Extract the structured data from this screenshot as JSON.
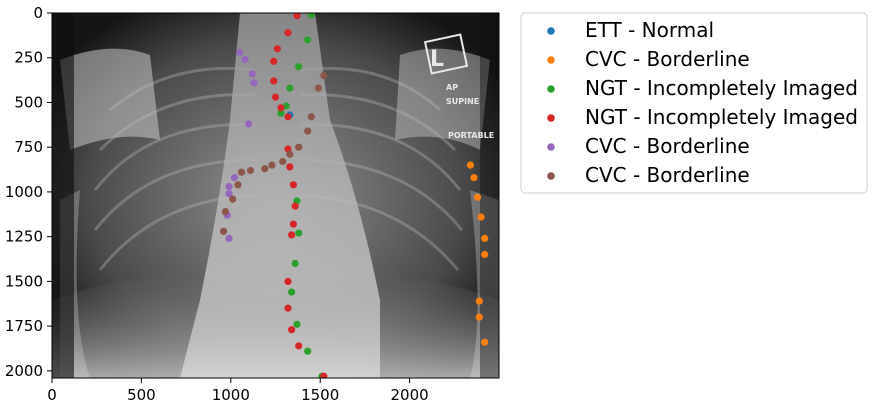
{
  "chart_data": {
    "type": "scatter",
    "title": "",
    "xlabel": "",
    "ylabel": "",
    "xlim": [
      0,
      2500
    ],
    "ylim": [
      2040,
      0
    ],
    "y_inverted": true,
    "grid": false,
    "legend_position": "outside upper right",
    "x_ticks": [
      0,
      500,
      1000,
      1500,
      2000
    ],
    "y_ticks": [
      0,
      250,
      500,
      750,
      1000,
      1250,
      1500,
      1750,
      2000
    ],
    "x_tick_labels": [
      "0",
      "500",
      "1000",
      "1500",
      "2000"
    ],
    "y_tick_labels": [
      "0",
      "250",
      "500",
      "750",
      "1000",
      "1250",
      "1500",
      "1750",
      "2000"
    ],
    "background_image": "chest-xray-ap-supine-portable",
    "image_labels": {
      "side_marker": "L",
      "view": "AP",
      "position": "SUPINE",
      "portable": "PORTABLE"
    },
    "series": [
      {
        "name": "ETT - Normal",
        "color": "#1f77b4",
        "points": [
          [
            1330,
            570
          ]
        ]
      },
      {
        "name": "CVC - Borderline",
        "color": "#ff7f0e",
        "points": [
          [
            2340,
            850
          ],
          [
            2360,
            920
          ],
          [
            2380,
            1030
          ],
          [
            2400,
            1140
          ],
          [
            2420,
            1260
          ],
          [
            2420,
            1350
          ],
          [
            2390,
            1610
          ],
          [
            2390,
            1700
          ],
          [
            2420,
            1840
          ]
        ]
      },
      {
        "name": "NGT - Incompletely Imaged",
        "color": "#2ca02c",
        "points": [
          [
            1450,
            10
          ],
          [
            1430,
            150
          ],
          [
            1380,
            300
          ],
          [
            1330,
            420
          ],
          [
            1310,
            520
          ],
          [
            1280,
            560
          ],
          [
            1370,
            1050
          ],
          [
            1380,
            1230
          ],
          [
            1360,
            1400
          ],
          [
            1340,
            1560
          ],
          [
            1370,
            1740
          ],
          [
            1430,
            1890
          ],
          [
            1510,
            2030
          ]
        ]
      },
      {
        "name": "NGT - Incompletely Imaged",
        "color": "#d62728",
        "points": [
          [
            1370,
            15
          ],
          [
            1320,
            110
          ],
          [
            1260,
            200
          ],
          [
            1240,
            270
          ],
          [
            1240,
            380
          ],
          [
            1250,
            470
          ],
          [
            1280,
            530
          ],
          [
            1320,
            580
          ],
          [
            1320,
            760
          ],
          [
            1330,
            860
          ],
          [
            1350,
            960
          ],
          [
            1360,
            1080
          ],
          [
            1350,
            1180
          ],
          [
            1340,
            1240
          ],
          [
            1320,
            1500
          ],
          [
            1320,
            1650
          ],
          [
            1340,
            1770
          ],
          [
            1380,
            1860
          ],
          [
            1520,
            2030
          ]
        ]
      },
      {
        "name": "CVC - Borderline",
        "color": "#9467bd",
        "points": [
          [
            1050,
            220
          ],
          [
            1080,
            260
          ],
          [
            1120,
            340
          ],
          [
            1130,
            390
          ],
          [
            1100,
            620
          ],
          [
            1020,
            920
          ],
          [
            990,
            970
          ],
          [
            990,
            1010
          ],
          [
            980,
            1130
          ],
          [
            990,
            1260
          ]
        ]
      },
      {
        "name": "CVC - Borderline",
        "color": "#8c564b",
        "points": [
          [
            1520,
            350
          ],
          [
            1490,
            420
          ],
          [
            1450,
            580
          ],
          [
            1430,
            660
          ],
          [
            1380,
            750
          ],
          [
            1330,
            790
          ],
          [
            1290,
            830
          ],
          [
            1230,
            850
          ],
          [
            1190,
            870
          ],
          [
            1110,
            880
          ],
          [
            1060,
            890
          ],
          [
            1040,
            960
          ],
          [
            1010,
            1040
          ],
          [
            970,
            1110
          ],
          [
            960,
            1220
          ]
        ]
      }
    ]
  }
}
